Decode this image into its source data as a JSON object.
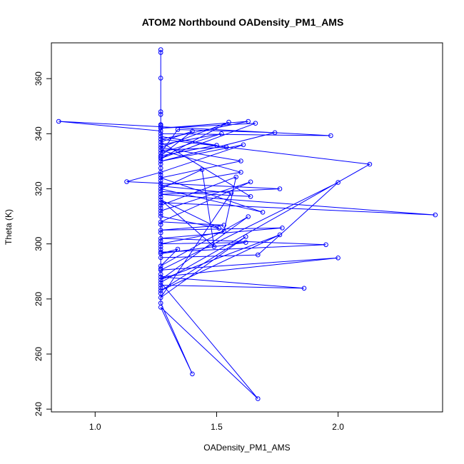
{
  "chart_data": {
    "type": "line",
    "title": "ATOM2 Northbound OADensity_PM1_AMS",
    "xlabel": "OADensity_PM1_AMS",
    "ylabel": "Theta (K)",
    "xlim": [
      0.82,
      2.43
    ],
    "ylim": [
      239,
      373
    ],
    "xticks": [
      1.0,
      1.5,
      2.0
    ],
    "xtick_labels": [
      "1.0",
      "1.5",
      "2.0"
    ],
    "yticks": [
      240,
      260,
      280,
      300,
      320,
      340,
      360
    ],
    "ytick_labels": [
      "240",
      "260",
      "280",
      "300",
      "320",
      "340",
      "360"
    ],
    "grid": false,
    "legend": "none",
    "marker": "open-circle",
    "color": "#0000ff",
    "series": [
      {
        "points": [
          [
            1.27,
            370.5
          ],
          [
            1.27,
            369.5
          ],
          [
            1.27,
            360.2
          ],
          [
            1.27,
            348
          ],
          [
            1.27,
            347
          ],
          [
            1.27,
            343
          ],
          [
            1.27,
            341
          ],
          [
            0.85,
            344.5
          ],
          [
            1.97,
            339.3
          ],
          [
            1.27,
            340
          ],
          [
            1.27,
            336
          ],
          [
            1.52,
            340
          ],
          [
            1.27,
            333
          ],
          [
            1.34,
            341.5
          ],
          [
            1.74,
            340.4
          ],
          [
            1.27,
            330
          ],
          [
            1.61,
            336
          ],
          [
            1.27,
            326
          ],
          [
            1.13,
            322.6
          ],
          [
            1.27,
            322
          ],
          [
            1.76,
            320
          ],
          [
            1.27,
            318
          ],
          [
            2.4,
            310.5
          ],
          [
            1.27,
            315
          ],
          [
            1.27,
            312
          ],
          [
            1.64,
            322.5
          ],
          [
            1.27,
            308
          ],
          [
            1.53,
            306.8
          ],
          [
            1.27,
            305
          ],
          [
            1.77,
            305.8
          ],
          [
            1.27,
            302
          ],
          [
            1.95,
            299.7
          ],
          [
            1.27,
            297
          ],
          [
            1.27,
            295
          ],
          [
            1.67,
            296
          ],
          [
            2.0,
            322.3
          ],
          [
            1.27,
            290.5
          ],
          [
            2.0,
            294.9
          ],
          [
            1.27,
            288
          ],
          [
            1.86,
            283.9
          ],
          [
            1.27,
            285
          ],
          [
            1.27,
            282
          ],
          [
            1.27,
            278.5
          ],
          [
            1.4,
            252.8
          ],
          [
            1.27,
            277
          ],
          [
            1.67,
            243.8
          ],
          [
            1.27,
            286
          ],
          [
            2.13,
            328.9
          ],
          [
            1.27,
            338
          ],
          [
            1.63,
            344.5
          ],
          [
            1.27,
            342
          ],
          [
            1.66,
            343.8
          ],
          [
            1.27,
            331
          ],
          [
            1.55,
            344.2
          ],
          [
            1.27,
            335
          ],
          [
            1.6,
            330.1
          ],
          [
            1.27,
            324
          ],
          [
            1.69,
            311.5
          ],
          [
            1.27,
            320
          ],
          [
            1.44,
            327
          ],
          [
            1.49,
            299
          ],
          [
            1.27,
            316
          ],
          [
            1.51,
            305.7
          ],
          [
            1.27,
            310
          ],
          [
            1.27,
            314
          ],
          [
            1.58,
            324.3
          ],
          [
            1.53,
            304.5
          ],
          [
            1.27,
            300
          ],
          [
            1.62,
            300.5
          ],
          [
            1.27,
            296.5
          ],
          [
            1.34,
            298.1
          ],
          [
            1.27,
            292
          ],
          [
            1.63,
            309.9
          ],
          [
            1.27,
            287
          ],
          [
            1.76,
            303.3
          ],
          [
            1.27,
            283
          ],
          [
            1.62,
            302.6
          ],
          [
            1.27,
            280.5
          ],
          [
            1.56,
            318.5
          ],
          [
            1.27,
            321
          ],
          [
            1.6,
            326
          ],
          [
            1.27,
            334
          ],
          [
            1.54,
            335.1
          ],
          [
            1.27,
            339
          ],
          [
            1.5,
            335.8
          ],
          [
            1.27,
            332
          ],
          [
            1.4,
            340.9
          ],
          [
            1.27,
            337
          ],
          [
            1.64,
            317.2
          ],
          [
            1.27,
            319
          ],
          [
            1.27,
            323
          ],
          [
            1.27,
            325
          ],
          [
            1.27,
            327.5
          ],
          [
            1.27,
            329
          ],
          [
            1.27,
            331.5
          ],
          [
            1.27,
            343.3
          ],
          [
            1.27,
            342.5
          ],
          [
            1.27,
            317
          ],
          [
            1.27,
            313
          ],
          [
            1.27,
            311
          ],
          [
            1.27,
            307
          ],
          [
            1.27,
            304
          ],
          [
            1.27,
            301
          ],
          [
            1.27,
            299
          ],
          [
            1.27,
            298
          ],
          [
            1.27,
            291
          ],
          [
            1.27,
            289
          ],
          [
            1.27,
            284
          ]
        ]
      }
    ]
  }
}
